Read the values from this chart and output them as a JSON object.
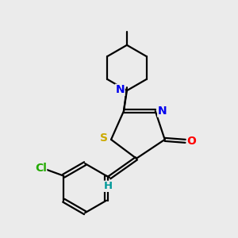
{
  "bg_color": "#ebebeb",
  "bond_color": "#000000",
  "bond_width": 1.6,
  "atom_colors": {
    "N": "#0000ee",
    "O": "#ff0000",
    "S": "#ccaa00",
    "Cl": "#22aa00",
    "H": "#009999",
    "C": "#000000"
  },
  "font_size": 9.5,
  "figsize": [
    3.0,
    3.0
  ],
  "dpi": 100
}
